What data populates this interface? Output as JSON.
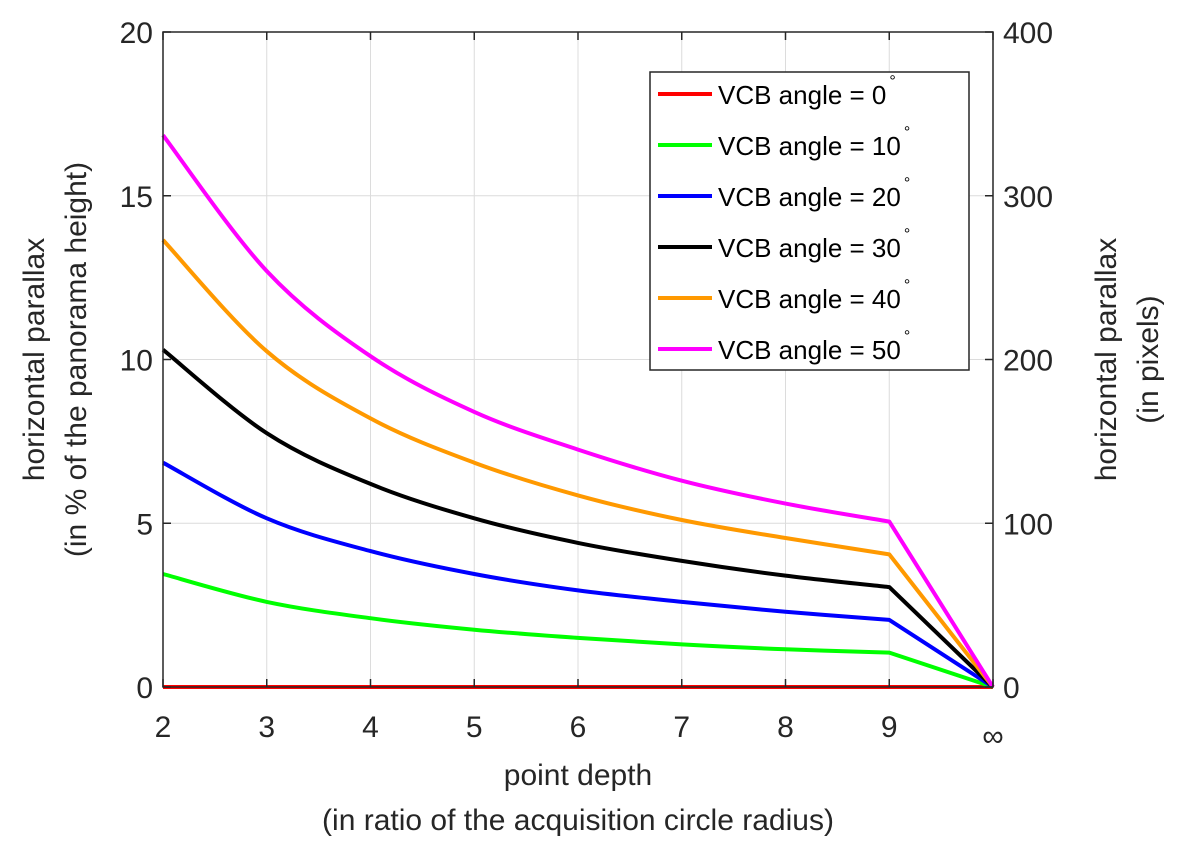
{
  "chart_data": {
    "type": "line",
    "xlabel": [
      "point depth",
      "(in ratio of the acquisition circle radius)"
    ],
    "ylabel": [
      "horizontal parallax",
      "(in % of the panorama height)"
    ],
    "ylabel_right": [
      "horizontal parallax",
      "(in pixels)"
    ],
    "x_ticks": [
      "2",
      "3",
      "4",
      "5",
      "6",
      "7",
      "8",
      "9",
      "∞"
    ],
    "x_tick_values": [
      2,
      3,
      4,
      5,
      6,
      7,
      8,
      9,
      10
    ],
    "y_ticks": [
      "0",
      "5",
      "10",
      "15",
      "20"
    ],
    "y_tick_values": [
      0,
      5,
      10,
      15,
      20
    ],
    "y_right_ticks": [
      "0",
      "100",
      "200",
      "300",
      "400"
    ],
    "xlim": [
      2,
      10
    ],
    "ylim": [
      0,
      20
    ],
    "ylim_right": [
      0,
      400
    ],
    "grid": true,
    "legend_position": "top-right",
    "degree_symbol": "°",
    "series": [
      {
        "name": "VCB angle = 0",
        "color": "#ff0000",
        "x": [
          2,
          3,
          4,
          5,
          6,
          7,
          8,
          9,
          10
        ],
        "y": [
          0,
          0,
          0,
          0,
          0,
          0,
          0,
          0,
          0
        ]
      },
      {
        "name": "VCB angle = 10",
        "color": "#00ff00",
        "x": [
          2,
          3,
          4,
          5,
          6,
          7,
          8,
          9,
          10
        ],
        "y": [
          3.45,
          2.6,
          2.1,
          1.75,
          1.5,
          1.3,
          1.15,
          1.05,
          0
        ]
      },
      {
        "name": "VCB angle = 20",
        "color": "#0000ff",
        "x": [
          2,
          3,
          4,
          5,
          6,
          7,
          8,
          9,
          10
        ],
        "y": [
          6.85,
          5.15,
          4.15,
          3.45,
          2.95,
          2.6,
          2.3,
          2.05,
          0
        ]
      },
      {
        "name": "VCB angle = 30",
        "color": "#000000",
        "x": [
          2,
          3,
          4,
          5,
          6,
          7,
          8,
          9,
          10
        ],
        "y": [
          10.3,
          7.75,
          6.2,
          5.15,
          4.4,
          3.85,
          3.4,
          3.05,
          0
        ]
      },
      {
        "name": "VCB angle = 40",
        "color": "#ff9900",
        "x": [
          2,
          3,
          4,
          5,
          6,
          7,
          8,
          9,
          10
        ],
        "y": [
          13.65,
          10.25,
          8.2,
          6.85,
          5.85,
          5.1,
          4.55,
          4.05,
          0
        ]
      },
      {
        "name": "VCB angle = 50",
        "color": "#ff00ff",
        "x": [
          2,
          3,
          4,
          5,
          6,
          7,
          8,
          9,
          10
        ],
        "y": [
          16.85,
          12.7,
          10.1,
          8.4,
          7.25,
          6.3,
          5.6,
          5.05,
          0
        ]
      }
    ]
  }
}
